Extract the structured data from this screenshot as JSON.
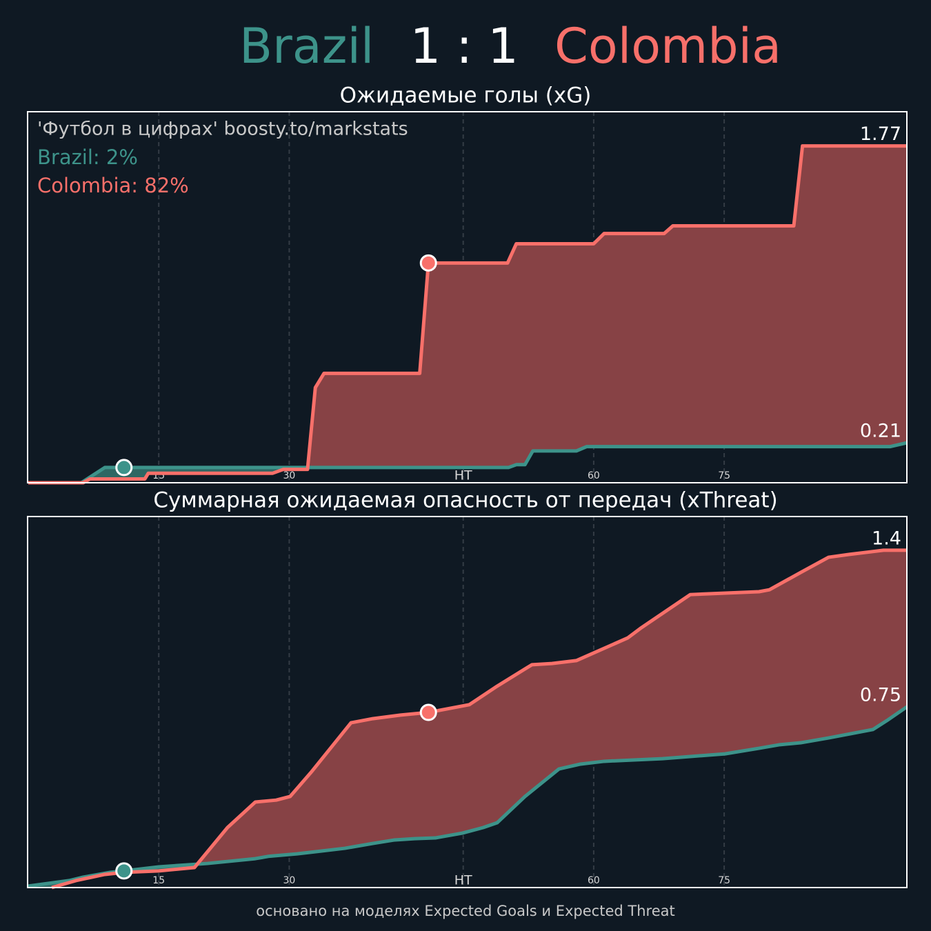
{
  "header": {
    "home": "Brazil",
    "score": "1 : 1",
    "away": "Colombia",
    "home_color": "#3d938a",
    "away_color": "#f8706a"
  },
  "watermark": "'Футбол в цифрах' boosty.to/markstats",
  "stats": [
    {
      "text": "Brazil: 2%",
      "color": "#3d938a"
    },
    {
      "text": "Colombia: 82%",
      "color": "#f8706a"
    }
  ],
  "footer": "основано на моделях Expected Goals и Expected Threat",
  "chart_data": [
    {
      "type": "line",
      "title": "Ожидаемые голы (xG)",
      "xlim": [
        0,
        101
      ],
      "ylim": [
        0,
        1.95
      ],
      "xticks": [
        15,
        30,
        {
          "value": 50,
          "label": "HT"
        },
        {
          "value": 65,
          "label": "60"
        },
        {
          "value": 80,
          "label": "75"
        }
      ],
      "grid": true,
      "series": [
        {
          "name": "Brazil",
          "color": "#3d938a",
          "fill": "#2e6763",
          "x": [
            0,
            6.1,
            8.8,
            55.2,
            56.1,
            57.1,
            58.0,
            63.0,
            64.2,
            99.1,
            101
          ],
          "values": [
            0,
            0,
            0.08,
            0.08,
            0.095,
            0.095,
            0.167,
            0.167,
            0.19,
            0.19,
            0.21
          ]
        },
        {
          "name": "Colombia",
          "color": "#f8706a",
          "fill": "#874245",
          "x": [
            0,
            6.3,
            7.1,
            13.4,
            13.8,
            28.1,
            29.3,
            32.1,
            33.0,
            34.0,
            45.0,
            46.0,
            55.1,
            56.1,
            65.0,
            66.2,
            73.1,
            74.1,
            88.0,
            89.0,
            101
          ],
          "values": [
            0,
            0,
            0.02,
            0.02,
            0.05,
            0.05,
            0.07,
            0.07,
            0.5,
            0.575,
            0.575,
            1.155,
            1.155,
            1.256,
            1.256,
            1.31,
            1.31,
            1.35,
            1.35,
            1.77,
            1.77
          ]
        }
      ],
      "goals": [
        {
          "x": 11,
          "y": 0.08,
          "color": "#3d938a"
        },
        {
          "x": 46,
          "y": 1.155,
          "color": "#f8706a"
        }
      ]
    },
    {
      "type": "line",
      "title": "Суммарная ожидаемая опасность от передач (xThreat)",
      "xlim": [
        0,
        101
      ],
      "ylim": [
        0,
        1.54
      ],
      "xticks": [
        15,
        30,
        {
          "value": 50,
          "label": "HT"
        },
        {
          "value": 65,
          "label": "60"
        },
        {
          "value": 80,
          "label": "75"
        }
      ],
      "grid": true,
      "series": [
        {
          "name": "Brazil",
          "color": "#3d938a",
          "fill": "#2e6763",
          "x": [
            0,
            4.7,
            6.3,
            9.4,
            11,
            15,
            20.6,
            26.1,
            27.7,
            30.9,
            33.3,
            36.4,
            39.6,
            42,
            44.4,
            46.8,
            49.9,
            52.3,
            53.9,
            57.1,
            61,
            63.4,
            66.2,
            72.9,
            80.1,
            84,
            86.4,
            88.8,
            92,
            97.1,
            98.7,
            101
          ],
          "values": [
            0.006,
            0.029,
            0.043,
            0.063,
            0.069,
            0.086,
            0.1,
            0.12,
            0.13,
            0.14,
            0.15,
            0.163,
            0.183,
            0.197,
            0.203,
            0.206,
            0.226,
            0.249,
            0.269,
            0.378,
            0.492,
            0.512,
            0.524,
            0.535,
            0.555,
            0.578,
            0.593,
            0.601,
            0.621,
            0.656,
            0.693,
            0.75
          ]
        },
        {
          "name": "Colombia",
          "color": "#f8706a",
          "fill": "#874245",
          "x": [
            2.7,
            5.5,
            8.7,
            11,
            15,
            19.1,
            22.9,
            26.1,
            28.5,
            30.1,
            32.5,
            37.1,
            39.6,
            42.8,
            46,
            50.7,
            53.9,
            57.9,
            60.2,
            63,
            68.9,
            70.5,
            76.1,
            84,
            85.2,
            88.8,
            92,
            94.4,
            98.3,
            101
          ],
          "values": [
            0,
            0.029,
            0.054,
            0.063,
            0.069,
            0.083,
            0.249,
            0.355,
            0.363,
            0.378,
            0.478,
            0.684,
            0.701,
            0.716,
            0.727,
            0.759,
            0.836,
            0.925,
            0.93,
            0.942,
            1.036,
            1.079,
            1.216,
            1.228,
            1.236,
            1.308,
            1.371,
            1.383,
            1.4,
            1.4
          ]
        }
      ],
      "goals": [
        {
          "x": 11,
          "y": 0.069,
          "color": "#3d938a"
        },
        {
          "x": 46,
          "y": 0.727,
          "color": "#f8706a"
        }
      ]
    }
  ]
}
